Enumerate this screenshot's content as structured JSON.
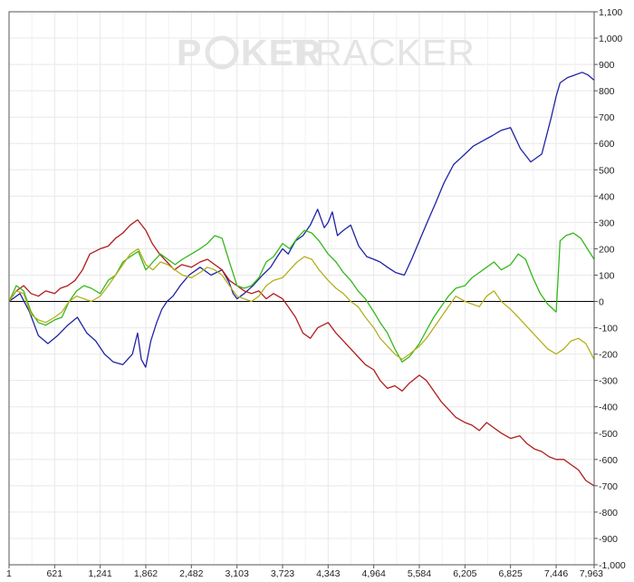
{
  "watermark": {
    "part1": "P",
    "part2": "KER",
    "part3": "TRACKER"
  },
  "colors": {
    "background": "#ffffff",
    "grid": "#e8e8e8",
    "zero_line": "#000000",
    "series": [
      "#1f23a3",
      "#b01c1c",
      "#33b81a",
      "#b3b01e"
    ]
  },
  "chart_data": {
    "type": "line",
    "title": "",
    "xlabel": "",
    "ylabel": "",
    "xlim": [
      1,
      7963
    ],
    "ylim": [
      -1000,
      1100
    ],
    "grid": true,
    "legend": "none",
    "x_ticks": [
      1,
      621,
      1241,
      1862,
      2482,
      3103,
      3723,
      4343,
      4964,
      5584,
      6205,
      6825,
      7446,
      7963
    ],
    "x_tick_labels": [
      "1",
      "621",
      "1,241",
      "1,862",
      "2,482",
      "3,103",
      "3,723",
      "4,343",
      "4,964",
      "5,584",
      "6,205",
      "6,825",
      "7,446",
      "7,963"
    ],
    "y_ticks": [
      1100,
      1000,
      900,
      800,
      700,
      600,
      500,
      400,
      300,
      200,
      100,
      0,
      -100,
      -200,
      -300,
      -400,
      -500,
      -600,
      -700,
      -800,
      -900,
      -1000
    ],
    "y_tick_labels": [
      "1,100",
      "1,000",
      "900",
      "800",
      "700",
      "600",
      "500",
      "400",
      "300",
      "200",
      "100",
      "0",
      "-100",
      "-200",
      "-300",
      "-400",
      "-500",
      "-600",
      "-700",
      "-800",
      "-900",
      "-1,000"
    ],
    "series": [
      {
        "x": [
          1,
          150,
          280,
          400,
          530,
          660,
          800,
          930,
          1060,
          1180,
          1300,
          1420,
          1550,
          1680,
          1750,
          1800,
          1860,
          1930,
          2010,
          2080,
          2150,
          2230,
          2330,
          2450,
          2600,
          2750,
          2900,
          3000,
          3050,
          3103,
          3200,
          3320,
          3450,
          3560,
          3650,
          3723,
          3800,
          3900,
          4000,
          4100,
          4200,
          4290,
          4343,
          4400,
          4470,
          4550,
          4650,
          4760,
          4870,
          4964,
          5050,
          5150,
          5260,
          5380,
          5480,
          5584,
          5690,
          5800,
          5920,
          6050,
          6205,
          6320,
          6450,
          6580,
          6700,
          6825,
          6960,
          7100,
          7250,
          7380,
          7446,
          7500,
          7600,
          7700,
          7800,
          7880,
          7963
        ],
        "y": [
          0,
          30,
          -40,
          -130,
          -160,
          -130,
          -90,
          -60,
          -120,
          -150,
          -200,
          -230,
          -240,
          -200,
          -120,
          -220,
          -250,
          -150,
          -80,
          -30,
          0,
          20,
          60,
          100,
          130,
          100,
          120,
          70,
          30,
          10,
          30,
          60,
          100,
          130,
          170,
          200,
          180,
          230,
          250,
          290,
          350,
          280,
          300,
          340,
          250,
          270,
          290,
          210,
          170,
          160,
          150,
          130,
          110,
          100,
          160,
          230,
          300,
          370,
          450,
          520,
          560,
          590,
          610,
          630,
          650,
          660,
          580,
          530,
          560,
          700,
          780,
          830,
          850,
          860,
          870,
          860,
          840
        ]
      },
      {
        "x": [
          1,
          100,
          200,
          300,
          400,
          500,
          621,
          700,
          800,
          900,
          1000,
          1100,
          1241,
          1350,
          1450,
          1550,
          1650,
          1750,
          1862,
          1950,
          2050,
          2150,
          2250,
          2350,
          2482,
          2600,
          2700,
          2800,
          2900,
          3000,
          3103,
          3200,
          3300,
          3400,
          3500,
          3600,
          3723,
          3800,
          3900,
          4000,
          4100,
          4200,
          4343,
          4450,
          4550,
          4650,
          4750,
          4850,
          4964,
          5050,
          5150,
          5250,
          5350,
          5450,
          5584,
          5680,
          5780,
          5880,
          5980,
          6080,
          6205,
          6300,
          6400,
          6500,
          6600,
          6700,
          6825,
          6950,
          7050,
          7150,
          7250,
          7350,
          7446,
          7550,
          7650,
          7750,
          7850,
          7963
        ],
        "y": [
          0,
          40,
          60,
          30,
          20,
          40,
          30,
          50,
          60,
          80,
          120,
          180,
          200,
          210,
          240,
          260,
          290,
          310,
          270,
          220,
          180,
          150,
          120,
          140,
          130,
          150,
          160,
          140,
          120,
          80,
          60,
          40,
          30,
          40,
          10,
          30,
          10,
          -20,
          -60,
          -120,
          -140,
          -100,
          -80,
          -120,
          -150,
          -180,
          -210,
          -240,
          -260,
          -300,
          -330,
          -320,
          -340,
          -310,
          -280,
          -300,
          -340,
          -380,
          -410,
          -440,
          -460,
          -470,
          -490,
          -460,
          -480,
          -500,
          -520,
          -510,
          -540,
          -560,
          -570,
          -590,
          -600,
          -600,
          -620,
          -640,
          -680,
          -700
        ]
      },
      {
        "x": [
          1,
          100,
          200,
          300,
          400,
          500,
          621,
          720,
          820,
          920,
          1020,
          1120,
          1241,
          1350,
          1450,
          1550,
          1650,
          1760,
          1862,
          1960,
          2060,
          2160,
          2260,
          2360,
          2482,
          2600,
          2700,
          2800,
          2900,
          3000,
          3103,
          3200,
          3300,
          3400,
          3500,
          3600,
          3723,
          3820,
          3920,
          4020,
          4120,
          4220,
          4343,
          4450,
          4550,
          4650,
          4750,
          4850,
          4964,
          5050,
          5150,
          5250,
          5350,
          5450,
          5584,
          5680,
          5780,
          5880,
          5980,
          6080,
          6205,
          6300,
          6400,
          6500,
          6600,
          6700,
          6825,
          6930,
          7030,
          7130,
          7230,
          7330,
          7446,
          7500,
          7580,
          7680,
          7780,
          7870,
          7963
        ],
        "y": [
          0,
          60,
          40,
          -40,
          -80,
          -90,
          -70,
          -60,
          0,
          40,
          60,
          50,
          30,
          80,
          100,
          150,
          170,
          190,
          120,
          150,
          180,
          160,
          140,
          160,
          180,
          200,
          220,
          250,
          240,
          150,
          60,
          50,
          60,
          90,
          150,
          170,
          220,
          200,
          240,
          270,
          260,
          230,
          180,
          150,
          110,
          80,
          40,
          10,
          -40,
          -80,
          -120,
          -180,
          -230,
          -210,
          -160,
          -110,
          -60,
          -20,
          20,
          50,
          60,
          90,
          110,
          130,
          150,
          120,
          140,
          180,
          160,
          90,
          30,
          -10,
          -40,
          230,
          250,
          260,
          240,
          200,
          160
        ]
      },
      {
        "x": [
          1,
          100,
          200,
          300,
          400,
          500,
          621,
          720,
          820,
          920,
          1020,
          1120,
          1241,
          1350,
          1450,
          1550,
          1650,
          1760,
          1862,
          1960,
          2060,
          2160,
          2260,
          2360,
          2482,
          2600,
          2700,
          2800,
          2900,
          3000,
          3103,
          3200,
          3300,
          3400,
          3500,
          3600,
          3723,
          3820,
          3920,
          4020,
          4120,
          4220,
          4343,
          4450,
          4550,
          4650,
          4750,
          4850,
          4964,
          5050,
          5150,
          5250,
          5350,
          5450,
          5584,
          5680,
          5780,
          5880,
          5980,
          6080,
          6205,
          6300,
          6400,
          6500,
          6600,
          6700,
          6825,
          6930,
          7030,
          7130,
          7230,
          7330,
          7446,
          7550,
          7650,
          7750,
          7850,
          7963
        ],
        "y": [
          0,
          40,
          30,
          -50,
          -70,
          -80,
          -60,
          -40,
          0,
          20,
          10,
          0,
          20,
          60,
          100,
          140,
          180,
          200,
          140,
          120,
          150,
          140,
          120,
          100,
          90,
          110,
          130,
          120,
          100,
          60,
          20,
          10,
          0,
          20,
          60,
          80,
          90,
          120,
          150,
          170,
          160,
          120,
          80,
          50,
          30,
          0,
          -20,
          -60,
          -100,
          -140,
          -170,
          -200,
          -220,
          -200,
          -170,
          -140,
          -100,
          -60,
          -20,
          20,
          0,
          -10,
          -20,
          20,
          40,
          0,
          -30,
          -60,
          -90,
          -120,
          -150,
          -180,
          -200,
          -180,
          -150,
          -140,
          -160,
          -220
        ]
      }
    ]
  }
}
